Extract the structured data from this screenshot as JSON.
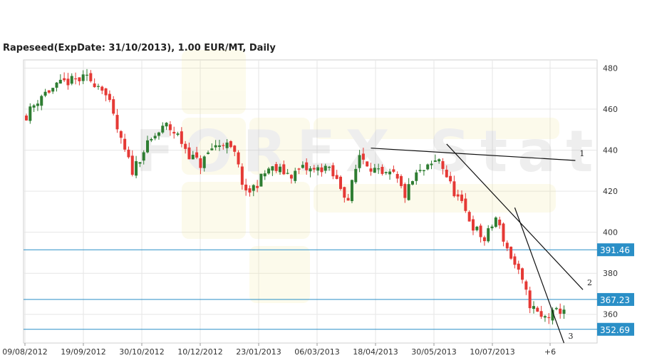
{
  "chart_data": {
    "type": "candlestick",
    "title": "Rapeseed(ExpDate: 31/10/2013), 1.00 EUR/MT, Daily",
    "watermark": "FOREX Stat",
    "ylim": [
      346,
      484
    ],
    "y_ticks": [
      360,
      380,
      400,
      420,
      440,
      460,
      480
    ],
    "x_ticks": [
      "09/08/2012",
      "19/09/2012",
      "30/10/2012",
      "10/12/2012",
      "23/01/2013",
      "06/03/2013",
      "18/04/2013",
      "30/05/2013",
      "10/07/2013",
      "+6"
    ],
    "grid": true,
    "colors": {
      "up": "#2e7d32",
      "down": "#e53935",
      "level_line": "#2a8fc7",
      "level_label_bg": "#2a8fc7",
      "trend_line": "#111111"
    },
    "price_path": [
      [
        0,
        457
      ],
      [
        4,
        467
      ],
      [
        10,
        473
      ],
      [
        16,
        475
      ],
      [
        20,
        471
      ],
      [
        22,
        462
      ],
      [
        25,
        444
      ],
      [
        28,
        430
      ],
      [
        31,
        440
      ],
      [
        34,
        447
      ],
      [
        37,
        452
      ],
      [
        40,
        447
      ],
      [
        43,
        438
      ],
      [
        46,
        433
      ],
      [
        49,
        441
      ],
      [
        52,
        444
      ],
      [
        55,
        438
      ],
      [
        58,
        418
      ],
      [
        61,
        424
      ],
      [
        64,
        431
      ],
      [
        67,
        430
      ],
      [
        70,
        428
      ],
      [
        73,
        431
      ],
      [
        76,
        430
      ],
      [
        79,
        432
      ],
      [
        82,
        425
      ],
      [
        85,
        416
      ],
      [
        88,
        438
      ],
      [
        91,
        432
      ],
      [
        94,
        427
      ],
      [
        97,
        428
      ],
      [
        100,
        418
      ],
      [
        103,
        428
      ],
      [
        106,
        431
      ],
      [
        109,
        436
      ],
      [
        112,
        423
      ],
      [
        115,
        413
      ],
      [
        118,
        403
      ],
      [
        121,
        396
      ],
      [
        124,
        407
      ],
      [
        127,
        392
      ],
      [
        130,
        380
      ],
      [
        133,
        365
      ],
      [
        136,
        358
      ],
      [
        139,
        360
      ],
      [
        142,
        363
      ]
    ],
    "levels": [
      {
        "value": 391.46,
        "label": "391.46"
      },
      {
        "value": 367.23,
        "label": "367.23"
      },
      {
        "value": 352.69,
        "label": "352.69"
      }
    ],
    "trend_lines": [
      {
        "label": "1",
        "from": [
          91,
          441
        ],
        "to": [
          145,
          435
        ]
      },
      {
        "label": "2",
        "from": [
          111,
          443
        ],
        "to": [
          147,
          372
        ]
      },
      {
        "label": "3",
        "from": [
          129,
          412
        ],
        "to": [
          142,
          346
        ]
      }
    ]
  }
}
